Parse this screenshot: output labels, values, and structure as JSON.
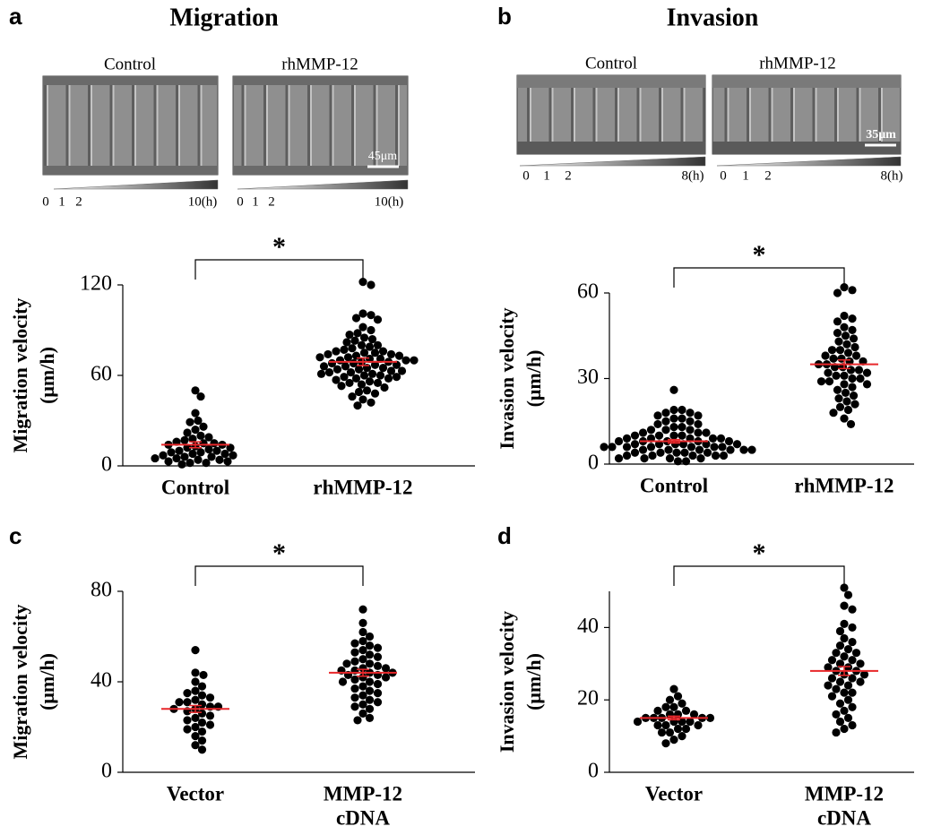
{
  "panel_labels": [
    "a",
    "b",
    "c",
    "d"
  ],
  "panel_titles": [
    "Migration",
    "Invasion"
  ],
  "micrographs": [
    {
      "labels": [
        "Control",
        "rhMMP-12"
      ],
      "scale_bar": "45μm",
      "time_labels": [
        "0",
        "1",
        "2",
        "10(h)"
      ]
    },
    {
      "labels": [
        "Control",
        "rhMMP-12"
      ],
      "scale_bar": "35μm",
      "time_labels": [
        "0",
        "1",
        "2",
        "8(h)"
      ]
    }
  ],
  "chart_data": [
    {
      "type": "dot",
      "ylabel": [
        "Migration velocity",
        "(μm/h)"
      ],
      "categories": [
        [
          "Control"
        ],
        [
          "rhMMP-12"
        ]
      ],
      "ylim": [
        0,
        120
      ],
      "yticks": [
        0,
        60,
        120
      ],
      "significance": "*",
      "color": "#000000",
      "mean_color": "#e8272a",
      "means": [
        14,
        69
      ],
      "sem": [
        2,
        2.5
      ],
      "values": [
        [
          50,
          46,
          35,
          30,
          29,
          26,
          24,
          22,
          20,
          19,
          18,
          17,
          16,
          15,
          15,
          14,
          14,
          13,
          12,
          12,
          11,
          10,
          10,
          9,
          9,
          8,
          8,
          7,
          7,
          6,
          6,
          5,
          5,
          4,
          4,
          3,
          3,
          2,
          2,
          1
        ],
        [
          122,
          120,
          101,
          100,
          98,
          97,
          92,
          90,
          88,
          87,
          85,
          84,
          83,
          82,
          80,
          80,
          79,
          78,
          77,
          76,
          76,
          75,
          75,
          74,
          74,
          73,
          73,
          72,
          72,
          71,
          71,
          70,
          70,
          70,
          69,
          69,
          68,
          68,
          67,
          67,
          66,
          66,
          65,
          65,
          64,
          64,
          63,
          63,
          62,
          62,
          61,
          61,
          60,
          60,
          59,
          59,
          58,
          58,
          57,
          56,
          55,
          55,
          54,
          53,
          52,
          50,
          49,
          48,
          46,
          44,
          42,
          40
        ]
      ]
    },
    {
      "type": "dot",
      "ylabel": [
        "Invasion velocity",
        "(μm/h)"
      ],
      "categories": [
        [
          "Control"
        ],
        [
          "rhMMP-12"
        ]
      ],
      "ylim": [
        0,
        60
      ],
      "yticks": [
        0,
        30,
        60
      ],
      "significance": "*",
      "color": "#000000",
      "mean_color": "#e8272a",
      "means": [
        8,
        35
      ],
      "sem": [
        0.6,
        1.5
      ],
      "values": [
        [
          26,
          19,
          19,
          18,
          18,
          17,
          17,
          16,
          16,
          15,
          15,
          14,
          14,
          13,
          13,
          12,
          12,
          12,
          11,
          11,
          11,
          10,
          10,
          10,
          10,
          9,
          9,
          9,
          9,
          9,
          8,
          8,
          8,
          8,
          8,
          7,
          7,
          7,
          7,
          7,
          7,
          6,
          6,
          6,
          6,
          6,
          6,
          6,
          5,
          5,
          5,
          5,
          5,
          5,
          4,
          4,
          4,
          4,
          4,
          3,
          3,
          3,
          3,
          3,
          2,
          2,
          2,
          2,
          1,
          1
        ],
        [
          62,
          61,
          60,
          52,
          51,
          50,
          48,
          47,
          46,
          45,
          44,
          43,
          42,
          41,
          40,
          40,
          39,
          38,
          38,
          37,
          37,
          36,
          36,
          35,
          35,
          34,
          34,
          33,
          33,
          32,
          32,
          31,
          31,
          30,
          30,
          29,
          29,
          28,
          28,
          27,
          26,
          25,
          24,
          23,
          22,
          21,
          20,
          19,
          18,
          16,
          14
        ]
      ]
    },
    {
      "type": "dot",
      "ylabel": [
        "Migration velocity",
        "(μm/h)"
      ],
      "categories": [
        [
          "Vector"
        ],
        [
          "MMP-12",
          "cDNA"
        ]
      ],
      "ylim": [
        0,
        80
      ],
      "yticks": [
        0,
        40,
        80
      ],
      "significance": "*",
      "color": "#000000",
      "mean_color": "#e8272a",
      "means": [
        28,
        44
      ],
      "sem": [
        1.5,
        1.5
      ],
      "values": [
        [
          54,
          44,
          43,
          40,
          38,
          36,
          35,
          34,
          33,
          32,
          31,
          31,
          30,
          29,
          29,
          28,
          28,
          27,
          26,
          25,
          24,
          23,
          22,
          21,
          20,
          19,
          18,
          16,
          14,
          12,
          10
        ],
        [
          72,
          66,
          62,
          60,
          58,
          57,
          56,
          55,
          54,
          53,
          52,
          51,
          50,
          49,
          48,
          48,
          47,
          46,
          46,
          45,
          45,
          44,
          44,
          43,
          43,
          42,
          42,
          41,
          40,
          40,
          39,
          38,
          37,
          36,
          35,
          34,
          33,
          32,
          31,
          30,
          29,
          28,
          26,
          24,
          23
        ]
      ]
    },
    {
      "type": "dot",
      "ylabel": [
        "Invasion velocity",
        "(μm/h)"
      ],
      "categories": [
        [
          "Vector"
        ],
        [
          "MMP-12",
          "cDNA"
        ]
      ],
      "ylim": [
        0,
        50
      ],
      "yticks": [
        0,
        20,
        40
      ],
      "significance": "*",
      "color": "#000000",
      "mean_color": "#e8272a",
      "means": [
        15,
        28
      ],
      "sem": [
        0.5,
        1.2
      ],
      "values": [
        [
          23,
          21,
          20,
          19,
          18,
          18,
          17,
          17,
          16,
          16,
          16,
          15,
          15,
          15,
          15,
          15,
          14,
          14,
          14,
          14,
          13,
          13,
          13,
          12,
          12,
          11,
          11,
          10,
          9,
          8
        ],
        [
          51,
          49,
          46,
          45,
          41,
          40,
          39,
          37,
          36,
          35,
          34,
          33,
          33,
          32,
          31,
          31,
          30,
          30,
          29,
          29,
          28,
          28,
          27,
          27,
          26,
          26,
          25,
          25,
          24,
          24,
          23,
          22,
          22,
          21,
          20,
          19,
          18,
          17,
          16,
          15,
          14,
          13,
          12,
          11
        ]
      ]
    }
  ]
}
